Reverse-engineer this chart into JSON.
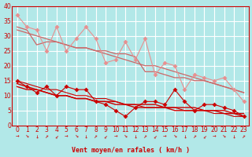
{
  "xlabel": "Vent moyen/en rafales ( km/h )",
  "ylabel": "",
  "bg_color": "#b2e8e8",
  "grid_color": "#ffffff",
  "xlim": [
    -0.5,
    23.5
  ],
  "ylim": [
    0,
    40
  ],
  "yticks": [
    0,
    5,
    10,
    15,
    20,
    25,
    30,
    35,
    40
  ],
  "xticks": [
    0,
    1,
    2,
    3,
    4,
    5,
    6,
    7,
    8,
    9,
    10,
    11,
    12,
    13,
    14,
    15,
    16,
    17,
    18,
    19,
    20,
    21,
    22,
    23
  ],
  "x": [
    0,
    1,
    2,
    3,
    4,
    5,
    6,
    7,
    8,
    9,
    10,
    11,
    12,
    13,
    14,
    15,
    16,
    17,
    18,
    19,
    20,
    21,
    22,
    23
  ],
  "line_pink_scatter": [
    37,
    33,
    32,
    25,
    33,
    25,
    29,
    33,
    29,
    21,
    22,
    28,
    22,
    29,
    17,
    21,
    20,
    12,
    17,
    16,
    15,
    16,
    12,
    8
  ],
  "line_pink_trend1": [
    33,
    32,
    27,
    28,
    28,
    27,
    26,
    26,
    25,
    25,
    24,
    24,
    23,
    18,
    18,
    17,
    16,
    16,
    15,
    15,
    14,
    13,
    12,
    11
  ],
  "line_pink_trend2": [
    32,
    31,
    30,
    29,
    28,
    27,
    26,
    26,
    25,
    24,
    23,
    22,
    21,
    20,
    20,
    19,
    18,
    17,
    16,
    15,
    14,
    13,
    12,
    11
  ],
  "line_red_scatter": [
    15,
    13,
    11,
    13,
    10,
    13,
    12,
    12,
    8,
    7,
    5,
    3,
    6,
    8,
    8,
    7,
    12,
    8,
    5,
    7,
    7,
    6,
    5,
    3
  ],
  "line_red_trend1": [
    14,
    13,
    12,
    11,
    10,
    10,
    9,
    9,
    8,
    8,
    8,
    7,
    7,
    7,
    7,
    6,
    6,
    6,
    6,
    5,
    5,
    5,
    4,
    4
  ],
  "line_red_trend2": [
    13,
    12,
    12,
    11,
    10,
    10,
    9,
    9,
    8,
    8,
    7,
    7,
    6,
    6,
    6,
    6,
    5,
    5,
    5,
    5,
    5,
    4,
    4,
    3
  ],
  "line_red_trend3": [
    15,
    14,
    13,
    12,
    12,
    11,
    10,
    10,
    9,
    9,
    8,
    7,
    7,
    6,
    6,
    6,
    6,
    5,
    5,
    5,
    4,
    4,
    3,
    3
  ],
  "color_pink": "#e89090",
  "color_red": "#cc0000",
  "color_pink_dark": "#cc6666",
  "marker_size": 3
}
